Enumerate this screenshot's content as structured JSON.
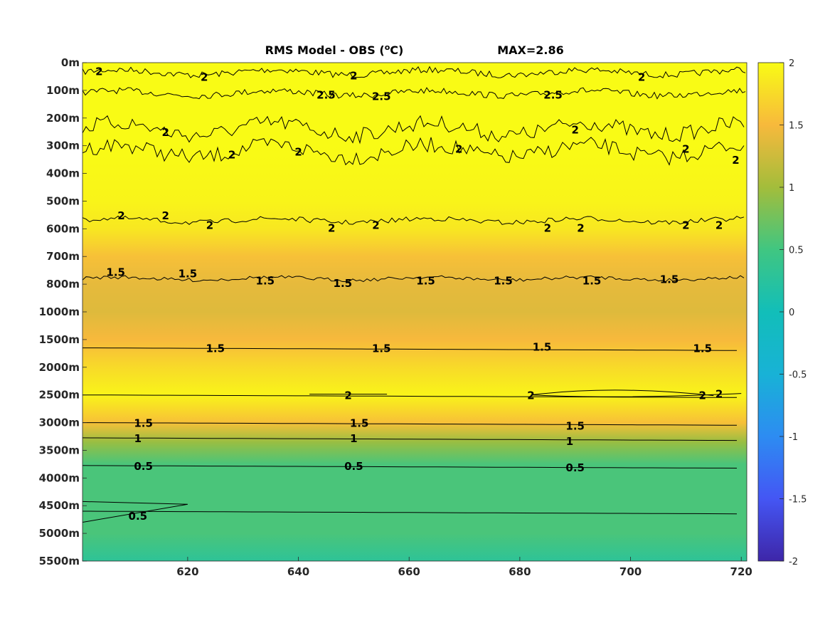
{
  "chart_data": {
    "type": "heatmap",
    "title": "RMS Model - OBS (",
    "title_unit_sup": "o",
    "title_unit_suffix": "C)",
    "max_label": "MAX=2.86",
    "x_ticks": [
      620,
      640,
      660,
      680,
      700,
      720
    ],
    "x_range": [
      601,
      721
    ],
    "y_tick_labels": [
      "0m",
      "100m",
      "200m",
      "300m",
      "400m",
      "500m",
      "600m",
      "700m",
      "800m",
      "1000m",
      "1500m",
      "2000m",
      "2500m",
      "3000m",
      "3500m",
      "4000m",
      "4500m",
      "5000m",
      "5500m"
    ],
    "colorbar": {
      "range": [
        -2,
        2
      ],
      "ticks": [
        2,
        1.5,
        1,
        0.5,
        0,
        -0.5,
        -1,
        -1.5,
        -2
      ],
      "tick_labels": [
        "2",
        "1.5",
        "1",
        "0.5",
        "0",
        "-0.5",
        "-1",
        "-1.5",
        "-2"
      ],
      "colormap": "parula"
    },
    "depth_profile": [
      {
        "level": 0,
        "value": 2.0
      },
      {
        "level": 3,
        "value": 2.0
      },
      {
        "level": 5,
        "value": 1.95
      },
      {
        "level": 6,
        "value": 1.85
      },
      {
        "level": 7,
        "value": 1.55
      },
      {
        "level": 8,
        "value": 1.4
      },
      {
        "level": 9,
        "value": 1.35
      },
      {
        "level": 10,
        "value": 1.5
      },
      {
        "level": 11,
        "value": 1.75
      },
      {
        "level": 12,
        "value": 1.95
      },
      {
        "level": 13,
        "value": 1.55
      },
      {
        "level": 13.7,
        "value": 0.95
      },
      {
        "level": 14.5,
        "value": 0.55
      },
      {
        "level": 17,
        "value": 0.55
      },
      {
        "level": 18,
        "value": 0.3
      }
    ],
    "contours": [
      {
        "label": "2",
        "level": 0.35
      },
      {
        "label": "2.5",
        "level": 1.1
      },
      {
        "label": "2",
        "level": 2.4
      },
      {
        "label": "2",
        "level": 3.2
      },
      {
        "label": "2",
        "level": 5.7
      },
      {
        "label": "1.5",
        "level": 7.8
      },
      {
        "label": "1.5",
        "level": 10.3
      },
      {
        "label": "2",
        "level": 12.0
      },
      {
        "label": "1.5",
        "level": 13.0
      },
      {
        "label": "1",
        "level": 13.55
      },
      {
        "label": "0.5",
        "level": 14.55
      },
      {
        "label": "0.5",
        "level": 16.2
      }
    ],
    "contour_labels": [
      {
        "text": "1.5",
        "x": 607,
        "level": 7.55
      },
      {
        "text": "1.5",
        "x": 620,
        "level": 7.6
      },
      {
        "text": "1.5",
        "x": 634,
        "level": 7.85
      },
      {
        "text": "1.5",
        "x": 648,
        "level": 7.95
      },
      {
        "text": "1.5",
        "x": 663,
        "level": 7.85
      },
      {
        "text": "1.5",
        "x": 677,
        "level": 7.85
      },
      {
        "text": "1.5",
        "x": 693,
        "level": 7.85
      },
      {
        "text": "1.5",
        "x": 707,
        "level": 7.8
      },
      {
        "text": "2",
        "x": 608,
        "level": 5.5
      },
      {
        "text": "2",
        "x": 616,
        "level": 5.5
      },
      {
        "text": "2",
        "x": 624,
        "level": 5.85
      },
      {
        "text": "2",
        "x": 646,
        "level": 5.95
      },
      {
        "text": "2",
        "x": 654,
        "level": 5.85
      },
      {
        "text": "2",
        "x": 685,
        "level": 5.95
      },
      {
        "text": "2",
        "x": 691,
        "level": 5.95
      },
      {
        "text": "2",
        "x": 710,
        "level": 5.85
      },
      {
        "text": "2",
        "x": 716,
        "level": 5.85
      },
      {
        "text": "2",
        "x": 616,
        "level": 2.5
      },
      {
        "text": "2",
        "x": 628,
        "level": 3.3
      },
      {
        "text": "2",
        "x": 640,
        "level": 3.2
      },
      {
        "text": "2",
        "x": 669,
        "level": 3.1
      },
      {
        "text": "2",
        "x": 690,
        "level": 2.4
      },
      {
        "text": "2",
        "x": 710,
        "level": 3.1
      },
      {
        "text": "2",
        "x": 719,
        "level": 3.5
      },
      {
        "text": "2",
        "x": 604,
        "level": 0.3
      },
      {
        "text": "2",
        "x": 623,
        "level": 0.5
      },
      {
        "text": "2",
        "x": 650,
        "level": 0.45
      },
      {
        "text": "2",
        "x": 702,
        "level": 0.5
      },
      {
        "text": "2.5",
        "x": 645,
        "level": 1.15
      },
      {
        "text": "2.5",
        "x": 655,
        "level": 1.2
      },
      {
        "text": "2.5",
        "x": 686,
        "level": 1.15
      },
      {
        "text": "1.5",
        "x": 625,
        "level": 10.3
      },
      {
        "text": "1.5",
        "x": 655,
        "level": 10.3
      },
      {
        "text": "1.5",
        "x": 684,
        "level": 10.25
      },
      {
        "text": "1.5",
        "x": 713,
        "level": 10.3
      },
      {
        "text": "2",
        "x": 649,
        "level": 12.0
      },
      {
        "text": "2",
        "x": 682,
        "level": 12.0
      },
      {
        "text": "2",
        "x": 713,
        "level": 12.0
      },
      {
        "text": "2",
        "x": 716,
        "level": 11.95
      },
      {
        "text": "1.5",
        "x": 612,
        "level": 13.0
      },
      {
        "text": "1.5",
        "x": 651,
        "level": 13.0
      },
      {
        "text": "1.5",
        "x": 690,
        "level": 13.1
      },
      {
        "text": "1",
        "x": 611,
        "level": 13.55
      },
      {
        "text": "1",
        "x": 650,
        "level": 13.55
      },
      {
        "text": "1",
        "x": 689,
        "level": 13.65
      },
      {
        "text": "0.5",
        "x": 612,
        "level": 14.55
      },
      {
        "text": "0.5",
        "x": 650,
        "level": 14.55
      },
      {
        "text": "0.5",
        "x": 690,
        "level": 14.6
      },
      {
        "text": "0.5",
        "x": 611,
        "level": 16.35
      }
    ]
  }
}
